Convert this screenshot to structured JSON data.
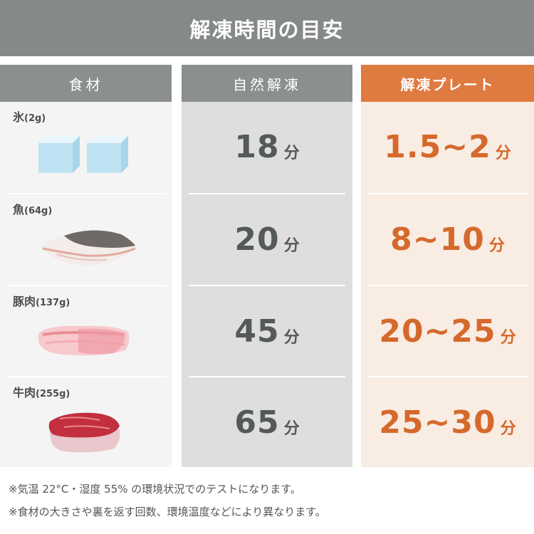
{
  "title": "解凍時間の目安",
  "headers": {
    "food": "食材",
    "natural": "自然解凍",
    "plate": "解凍プレート"
  },
  "colors": {
    "title_bg": "#858a88",
    "header_gray": "#8b8f8e",
    "header_orange": "#df7a40",
    "plate_text": "#d5692c",
    "natural_text": "#545a58"
  },
  "rows": [
    {
      "food": "氷",
      "qty": "(2g)",
      "icon": "ice-cubes-icon",
      "natural": "18",
      "plate": "1.5~2",
      "unit": "分"
    },
    {
      "food": "魚",
      "qty": "(64g)",
      "icon": "fish-fillet-icon",
      "natural": "20",
      "plate": "8~10",
      "unit": "分"
    },
    {
      "food": "豚肉",
      "qty": "(137g)",
      "icon": "pork-slice-icon",
      "natural": "45",
      "plate": "20~25",
      "unit": "分"
    },
    {
      "food": "牛肉",
      "qty": "(255g)",
      "icon": "beef-steak-icon",
      "natural": "65",
      "plate": "25~30",
      "unit": "分"
    }
  ],
  "notes": [
    "※気温 22°C・湿度 55% の環境状況でのテストになります。",
    "※食材の大きさや裏を返す回数、環境温度などにより異なります。"
  ]
}
